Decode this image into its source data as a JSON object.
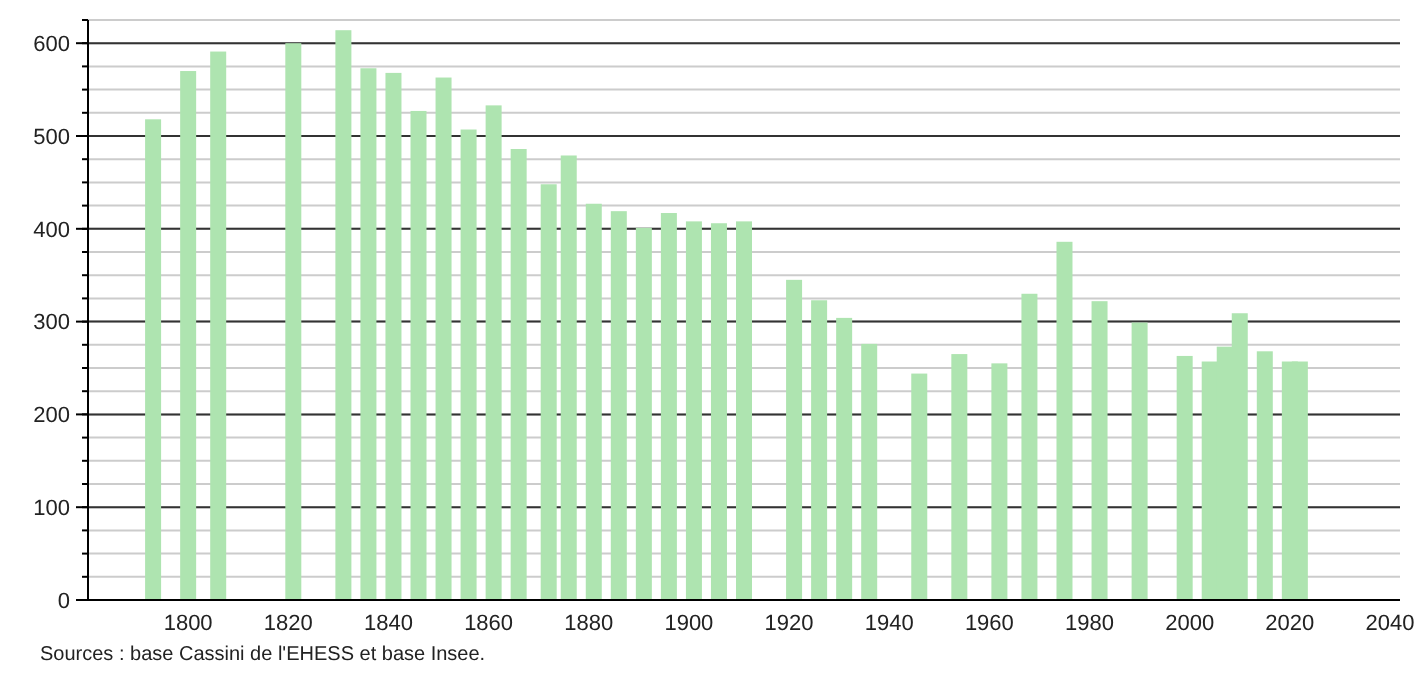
{
  "chart_data": {
    "type": "bar",
    "x": [
      1793,
      1800,
      1806,
      1821,
      1831,
      1836,
      1841,
      1846,
      1851,
      1856,
      1861,
      1866,
      1872,
      1876,
      1881,
      1886,
      1891,
      1896,
      1901,
      1906,
      1911,
      1921,
      1926,
      1931,
      1936,
      1946,
      1954,
      1962,
      1968,
      1975,
      1982,
      1990,
      1999,
      2004,
      2007,
      2010,
      2015,
      2020,
      2022
    ],
    "series": [
      {
        "color": "#aee4b0",
        "values": [
          518,
          570,
          591,
          600,
          614,
          573,
          568,
          527,
          563,
          507,
          533,
          486,
          448,
          479,
          427,
          419,
          401,
          417,
          408,
          406,
          408,
          345,
          323,
          304,
          276,
          244,
          265,
          255,
          330,
          386,
          322,
          299,
          263,
          257,
          273,
          309,
          268,
          257,
          257
        ]
      }
    ],
    "xlim": [
      1780,
      2042
    ],
    "xticks": [
      1800,
      1820,
      1840,
      1860,
      1880,
      1900,
      1920,
      1940,
      1960,
      1980,
      2000,
      2020,
      2040
    ],
    "ylim": [
      0,
      625
    ],
    "yticks": [
      0,
      100,
      200,
      300,
      400,
      500,
      600
    ],
    "grid": "y",
    "annotations": [
      "Sources : base Cassini de l'EHESS et base Insee."
    ]
  }
}
